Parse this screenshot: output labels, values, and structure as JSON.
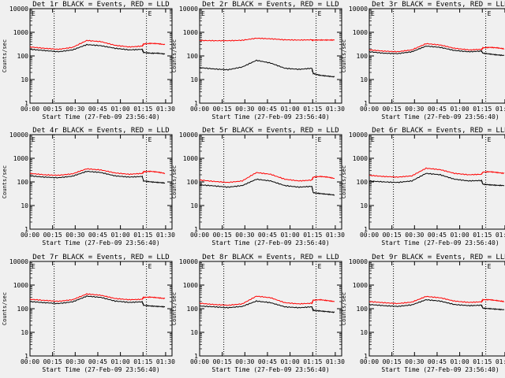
{
  "chart_data": [
    {
      "type": "line",
      "title": "Det 1r BLACK = Events, RED = LLD",
      "ylabel": "Counts/sec",
      "xlabel": "Start Time (27-Feb-09 23:56:40)",
      "yscale": "log",
      "ylim": [
        1,
        10000
      ],
      "xlim": [
        0,
        100
      ],
      "yticks": [
        "1",
        "10",
        "100",
        "1000",
        "10000"
      ],
      "xticks": [
        "00:00",
        "00:15",
        "00:30",
        "00:45",
        "01:00",
        "01:15",
        "01:30"
      ],
      "markers": [
        {
          "label": "E",
          "x": 0
        },
        {
          "label": "E",
          "x": 82
        }
      ],
      "vlines": [
        17,
        82
      ],
      "series": [
        {
          "name": "Events",
          "color": "#000000",
          "x": [
            0,
            10,
            20,
            30,
            40,
            50,
            60,
            70,
            79,
            80,
            85,
            90,
            95
          ],
          "y": [
            190,
            170,
            150,
            180,
            300,
            270,
            210,
            180,
            190,
            140,
            130,
            130,
            120
          ]
        },
        {
          "name": "LLD",
          "color": "#ff0000",
          "x": [
            0,
            10,
            20,
            30,
            40,
            50,
            60,
            70,
            79,
            80,
            85,
            90,
            95
          ],
          "y": [
            240,
            210,
            190,
            230,
            450,
            400,
            280,
            240,
            260,
            320,
            340,
            330,
            300
          ]
        }
      ]
    },
    {
      "type": "line",
      "title": "Det 2r BLACK = Events, RED = LLD",
      "ylabel": "Counts/sec",
      "xlabel": "Start Time (27-Feb-09 23:56:40)",
      "yscale": "log",
      "ylim": [
        1,
        10000
      ],
      "xlim": [
        0,
        100
      ],
      "yticks": [
        "1",
        "10",
        "100",
        "1000",
        "10000"
      ],
      "xticks": [
        "00:00",
        "00:15",
        "00:30",
        "00:45",
        "01:00",
        "01:15",
        "01:30"
      ],
      "markers": [
        {
          "label": "E",
          "x": 0
        },
        {
          "label": "E",
          "x": 82
        }
      ],
      "vlines": [
        17,
        82
      ],
      "series": [
        {
          "name": "Events",
          "color": "#000000",
          "x": [
            0,
            10,
            20,
            30,
            40,
            50,
            60,
            70,
            79,
            80,
            85,
            90,
            95
          ],
          "y": [
            32,
            28,
            26,
            34,
            65,
            50,
            30,
            27,
            30,
            18,
            15,
            14,
            13
          ]
        },
        {
          "name": "LLD",
          "color": "#ff0000",
          "x": [
            0,
            10,
            20,
            30,
            40,
            50,
            60,
            70,
            79,
            80,
            85,
            90,
            95
          ],
          "y": [
            450,
            440,
            440,
            460,
            560,
            530,
            480,
            470,
            480,
            470,
            470,
            470,
            470
          ]
        }
      ]
    },
    {
      "type": "line",
      "title": "Det 3r BLACK = Events, RED = LLD",
      "ylabel": "Counts/sec",
      "xlabel": "Start Time (27-Feb-09 23:56:40)",
      "yscale": "log",
      "ylim": [
        1,
        10000
      ],
      "xlim": [
        0,
        100
      ],
      "yticks": [
        "1",
        "10",
        "100",
        "1000",
        "10000"
      ],
      "xticks": [
        "00:00",
        "00:15",
        "00:30",
        "00:45",
        "01:00",
        "01:15",
        "01:30"
      ],
      "markers": [
        {
          "label": "E",
          "x": 0
        },
        {
          "label": "E",
          "x": 82
        }
      ],
      "vlines": [
        17,
        82
      ],
      "series": [
        {
          "name": "Events",
          "color": "#000000",
          "x": [
            0,
            10,
            20,
            30,
            40,
            50,
            60,
            70,
            79,
            80,
            85,
            90,
            95
          ],
          "y": [
            150,
            130,
            125,
            150,
            260,
            230,
            170,
            150,
            160,
            130,
            120,
            110,
            105
          ]
        },
        {
          "name": "LLD",
          "color": "#ff0000",
          "x": [
            0,
            10,
            20,
            30,
            40,
            50,
            60,
            70,
            79,
            80,
            85,
            90,
            95
          ],
          "y": [
            180,
            160,
            150,
            180,
            330,
            290,
            210,
            180,
            190,
            220,
            230,
            220,
            200
          ]
        }
      ]
    },
    {
      "type": "line",
      "title": "Det 4r BLACK = Events, RED = LLD",
      "ylabel": "Counts/sec",
      "xlabel": "Start Time (27-Feb-09 23:56:40)",
      "yscale": "log",
      "ylim": [
        1,
        10000
      ],
      "xlim": [
        0,
        100
      ],
      "yticks": [
        "1",
        "10",
        "100",
        "1000",
        "10000"
      ],
      "xticks": [
        "00:00",
        "00:15",
        "00:30",
        "00:45",
        "01:00",
        "01:15",
        "01:30"
      ],
      "markers": [
        {
          "label": "E",
          "x": 0
        },
        {
          "label": "E",
          "x": 82
        }
      ],
      "vlines": [
        17,
        82
      ],
      "series": [
        {
          "name": "Events",
          "color": "#000000",
          "x": [
            0,
            10,
            20,
            30,
            40,
            50,
            60,
            70,
            79,
            80,
            85,
            90,
            95
          ],
          "y": [
            180,
            160,
            150,
            175,
            280,
            250,
            180,
            160,
            170,
            110,
            100,
            95,
            90
          ]
        },
        {
          "name": "LLD",
          "color": "#ff0000",
          "x": [
            0,
            10,
            20,
            30,
            40,
            50,
            60,
            70,
            79,
            80,
            85,
            90,
            95
          ],
          "y": [
            230,
            200,
            190,
            220,
            360,
            320,
            240,
            210,
            230,
            270,
            280,
            260,
            230
          ]
        }
      ]
    },
    {
      "type": "line",
      "title": "Det 5r BLACK = Events, RED = LLD",
      "ylabel": "Counts/sec",
      "xlabel": "Start Time (27-Feb-09 23:56:40)",
      "yscale": "log",
      "ylim": [
        1,
        10000
      ],
      "xlim": [
        0,
        100
      ],
      "yticks": [
        "1",
        "10",
        "100",
        "1000",
        "10000"
      ],
      "xticks": [
        "00:00",
        "00:15",
        "00:30",
        "00:45",
        "01:00",
        "01:15",
        "01:30"
      ],
      "markers": [
        {
          "label": "E",
          "x": 0
        },
        {
          "label": "E",
          "x": 82
        }
      ],
      "vlines": [
        17,
        82
      ],
      "series": [
        {
          "name": "Events",
          "color": "#000000",
          "x": [
            0,
            10,
            20,
            30,
            40,
            50,
            60,
            70,
            79,
            80,
            85,
            90,
            95
          ],
          "y": [
            75,
            68,
            60,
            70,
            130,
            110,
            70,
            60,
            65,
            35,
            32,
            30,
            28
          ]
        },
        {
          "name": "LLD",
          "color": "#ff0000",
          "x": [
            0,
            10,
            20,
            30,
            40,
            50,
            60,
            70,
            79,
            80,
            85,
            90,
            95
          ],
          "y": [
            120,
            105,
            95,
            110,
            250,
            210,
            130,
            110,
            120,
            160,
            170,
            160,
            140
          ]
        }
      ]
    },
    {
      "type": "line",
      "title": "Det 6r BLACK = Events, RED = LLD",
      "ylabel": "Counts/sec",
      "xlabel": "Start Time (27-Feb-09 23:56:40)",
      "yscale": "log",
      "ylim": [
        1,
        10000
      ],
      "xlim": [
        0,
        100
      ],
      "yticks": [
        "1",
        "10",
        "100",
        "1000",
        "10000"
      ],
      "xticks": [
        "00:00",
        "00:15",
        "00:30",
        "00:45",
        "01:00",
        "01:15",
        "01:30"
      ],
      "markers": [
        {
          "label": "E",
          "x": 0
        },
        {
          "label": "E",
          "x": 82
        }
      ],
      "vlines": [
        17,
        82
      ],
      "series": [
        {
          "name": "Events",
          "color": "#000000",
          "x": [
            0,
            10,
            20,
            30,
            40,
            50,
            60,
            70,
            79,
            80,
            85,
            90,
            95
          ],
          "y": [
            110,
            100,
            95,
            110,
            230,
            200,
            130,
            110,
            115,
            80,
            75,
            72,
            70
          ]
        },
        {
          "name": "LLD",
          "color": "#ff0000",
          "x": [
            0,
            10,
            20,
            30,
            40,
            50,
            60,
            70,
            79,
            80,
            85,
            90,
            95
          ],
          "y": [
            190,
            170,
            160,
            180,
            380,
            330,
            230,
            200,
            210,
            260,
            270,
            250,
            230
          ]
        }
      ]
    },
    {
      "type": "line",
      "title": "Det 7r BLACK = Events, RED = LLD",
      "ylabel": "Counts/sec",
      "xlabel": "Start Time (27-Feb-09 23:56:40)",
      "yscale": "log",
      "ylim": [
        1,
        10000
      ],
      "xlim": [
        0,
        100
      ],
      "yticks": [
        "1",
        "10",
        "100",
        "1000",
        "10000"
      ],
      "xticks": [
        "00:00",
        "00:15",
        "00:30",
        "00:45",
        "01:00",
        "01:15",
        "01:30"
      ],
      "markers": [
        {
          "label": "E",
          "x": 0
        },
        {
          "label": "E",
          "x": 82
        }
      ],
      "vlines": [
        17,
        82
      ],
      "series": [
        {
          "name": "Events",
          "color": "#000000",
          "x": [
            0,
            10,
            20,
            30,
            40,
            50,
            60,
            70,
            79,
            80,
            85,
            90,
            95
          ],
          "y": [
            200,
            180,
            165,
            195,
            340,
            300,
            210,
            185,
            195,
            140,
            130,
            125,
            120
          ]
        },
        {
          "name": "LLD",
          "color": "#ff0000",
          "x": [
            0,
            10,
            20,
            30,
            40,
            50,
            60,
            70,
            79,
            80,
            85,
            90,
            95
          ],
          "y": [
            250,
            225,
            205,
            240,
            420,
            370,
            270,
            240,
            250,
            300,
            310,
            290,
            270
          ]
        }
      ]
    },
    {
      "type": "line",
      "title": "Det 8r BLACK = Events, RED = LLD",
      "ylabel": "Counts/sec",
      "xlabel": "Start Time (27-Feb-09 23:56:40)",
      "yscale": "log",
      "ylim": [
        1,
        10000
      ],
      "xlim": [
        0,
        100
      ],
      "yticks": [
        "1",
        "10",
        "100",
        "1000",
        "10000"
      ],
      "xticks": [
        "00:00",
        "00:15",
        "00:30",
        "00:45",
        "01:00",
        "01:15",
        "01:30"
      ],
      "markers": [
        {
          "label": "E",
          "x": 0
        },
        {
          "label": "E",
          "x": 82
        }
      ],
      "vlines": [
        17,
        82
      ],
      "series": [
        {
          "name": "Events",
          "color": "#000000",
          "x": [
            0,
            10,
            20,
            30,
            40,
            50,
            60,
            70,
            79,
            80,
            85,
            90,
            95
          ],
          "y": [
            130,
            120,
            110,
            125,
            210,
            180,
            120,
            110,
            120,
            85,
            80,
            75,
            70
          ]
        },
        {
          "name": "LLD",
          "color": "#ff0000",
          "x": [
            0,
            10,
            20,
            30,
            40,
            50,
            60,
            70,
            79,
            80,
            85,
            90,
            95
          ],
          "y": [
            170,
            150,
            140,
            160,
            340,
            290,
            180,
            160,
            170,
            230,
            240,
            220,
            200
          ]
        }
      ]
    },
    {
      "type": "line",
      "title": "Det 9r BLACK = Events, RED = LLD",
      "ylabel": "Counts/sec",
      "xlabel": "Start Time (27-Feb-09 23:56:40)",
      "yscale": "log",
      "ylim": [
        1,
        10000
      ],
      "xlim": [
        0,
        100
      ],
      "yticks": [
        "1",
        "10",
        "100",
        "1000",
        "10000"
      ],
      "xticks": [
        "00:00",
        "00:15",
        "00:30",
        "00:45",
        "01:00",
        "01:15",
        "01:30"
      ],
      "markers": [
        {
          "label": "E",
          "x": 0
        },
        {
          "label": "E",
          "x": 82
        }
      ],
      "vlines": [
        17,
        82
      ],
      "series": [
        {
          "name": "Events",
          "color": "#000000",
          "x": [
            0,
            10,
            20,
            30,
            40,
            50,
            60,
            70,
            79,
            80,
            85,
            90,
            95
          ],
          "y": [
            150,
            135,
            125,
            145,
            240,
            210,
            150,
            135,
            140,
            105,
            100,
            95,
            90
          ]
        },
        {
          "name": "LLD",
          "color": "#ff0000",
          "x": [
            0,
            10,
            20,
            30,
            40,
            50,
            60,
            70,
            79,
            80,
            85,
            90,
            95
          ],
          "y": [
            200,
            180,
            165,
            190,
            330,
            290,
            210,
            185,
            195,
            240,
            240,
            220,
            200
          ]
        }
      ]
    }
  ]
}
